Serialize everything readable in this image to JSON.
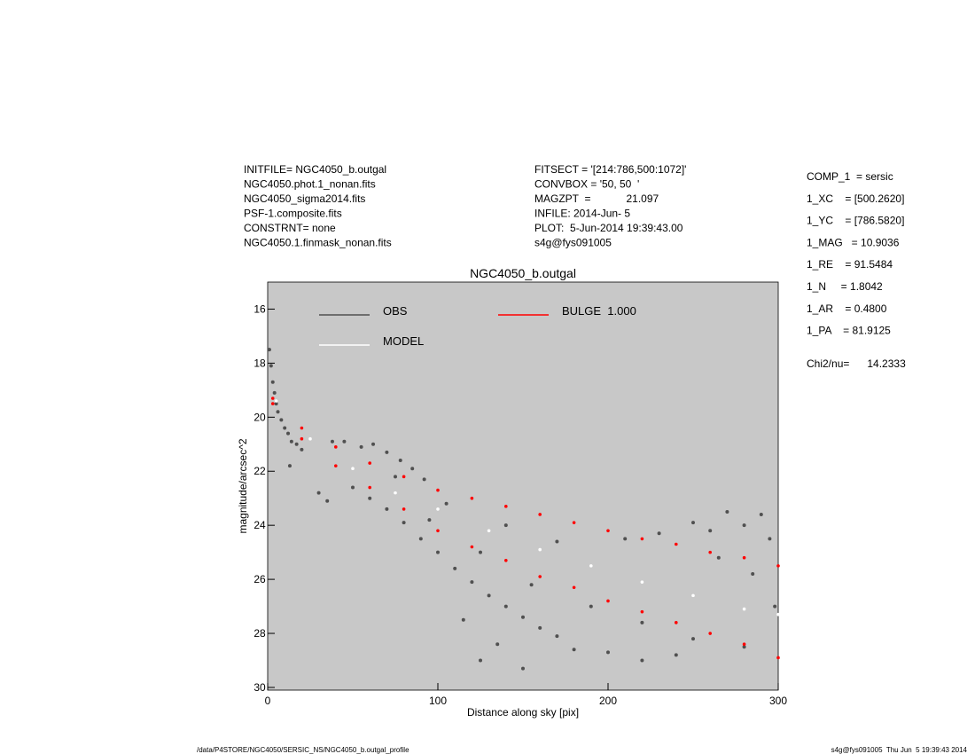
{
  "header": {
    "left": [
      "INITFILE= NGC4050_b.outgal",
      "NGC4050.phot.1_nonan.fits",
      "NGC4050_sigma2014.fits",
      "PSF-1.composite.fits",
      "CONSTRNT= none",
      "NGC4050.1.finmask_nonan.fits"
    ],
    "middle": [
      "FITSECT = '[214:786,500:1072]'",
      "CONVBOX = '50, 50  '",
      "MAGZPT  =            21.097",
      "INFILE: 2014-Jun- 5",
      "PLOT:  5-Jun-2014 19:39:43.00",
      "s4g@fys091005"
    ],
    "right": [
      "COMP_1  = sersic",
      "1_XC    = [500.2620]",
      "1_YC    = [786.5820]",
      "1_MAG   = 10.9036",
      "1_RE    = 91.5484",
      "1_N     = 1.8042",
      "1_AR    = 0.4800",
      "1_PA    = 81.9125"
    ],
    "chi2": "Chi2/nu=      14.2333"
  },
  "footer": {
    "left": "/data/P4STORE/NGC4050/SERSIC_NS/NGC4050_b.outgal_profile",
    "right": "s4g@fys091005  Thu Jun  5 19:39:43 2014"
  },
  "chart_data": {
    "type": "scatter",
    "title": "NGC4050_b.outgal",
    "x_label": "Distance along sky [pix]",
    "y_label": "magnitude/arcsec^2",
    "xlim": [
      0,
      300
    ],
    "ylim": [
      15,
      30.1
    ],
    "y_inverted": true,
    "xticks": [
      0,
      100,
      200,
      300
    ],
    "yticks": [
      16,
      18,
      20,
      22,
      24,
      26,
      28,
      30
    ],
    "background": "#c8c8c8",
    "series": [
      {
        "name": "OBS",
        "color": "#505050",
        "x": [
          1,
          2,
          3,
          4,
          5,
          6,
          8,
          10,
          12,
          14,
          17,
          20,
          13,
          30,
          35,
          38,
          45,
          55,
          62,
          70,
          78,
          85,
          92,
          50,
          60,
          70,
          80,
          90,
          100,
          110,
          120,
          130,
          140,
          150,
          160,
          170,
          115,
          125,
          135,
          150,
          180,
          200,
          220,
          240,
          210,
          230,
          250,
          260,
          270,
          280,
          290,
          295,
          265,
          285,
          298,
          105,
          140,
          170,
          75,
          95,
          125,
          155,
          190,
          220,
          250,
          280
        ],
        "values": [
          17.5,
          18.1,
          18.7,
          19.1,
          19.5,
          19.8,
          20.1,
          20.4,
          20.6,
          20.9,
          21.0,
          21.2,
          21.8,
          22.8,
          23.1,
          20.9,
          20.9,
          21.1,
          21.0,
          21.3,
          21.6,
          21.9,
          22.3,
          22.6,
          23.0,
          23.4,
          23.9,
          24.5,
          25.0,
          25.6,
          26.1,
          26.6,
          27.0,
          27.4,
          27.8,
          28.1,
          27.5,
          29.0,
          28.4,
          29.3,
          28.6,
          28.7,
          29.0,
          28.8,
          24.5,
          24.3,
          23.9,
          24.2,
          23.5,
          24.0,
          23.6,
          24.5,
          25.2,
          25.8,
          27.0,
          23.2,
          24.0,
          24.6,
          22.2,
          23.8,
          25.0,
          26.2,
          27.0,
          27.6,
          28.2,
          28.5
        ]
      },
      {
        "name": "MODEL",
        "color": "#ffffff",
        "x": [
          5,
          25,
          50,
          75,
          100,
          130,
          160,
          190,
          220,
          250,
          280,
          300
        ],
        "values": [
          19.4,
          20.8,
          21.9,
          22.8,
          23.4,
          24.2,
          24.9,
          25.5,
          26.1,
          26.6,
          27.1,
          27.3
        ]
      },
      {
        "name": "BULGE  1.000",
        "color": "#ff0000",
        "x": [
          3,
          20,
          40,
          60,
          80,
          100,
          120,
          140,
          160,
          180,
          200,
          220,
          240,
          260,
          280,
          300,
          3,
          20,
          40,
          60,
          80,
          100,
          120,
          140,
          160,
          180,
          200,
          220,
          240,
          260,
          280,
          300
        ],
        "values": [
          19.3,
          20.4,
          21.1,
          21.7,
          22.2,
          22.7,
          23.0,
          23.3,
          23.6,
          23.9,
          24.2,
          24.5,
          24.7,
          25.0,
          25.2,
          25.5,
          19.5,
          20.8,
          21.8,
          22.6,
          23.4,
          24.2,
          24.8,
          25.3,
          25.9,
          26.3,
          26.8,
          27.2,
          27.6,
          28.0,
          28.4,
          28.9
        ]
      }
    ]
  }
}
